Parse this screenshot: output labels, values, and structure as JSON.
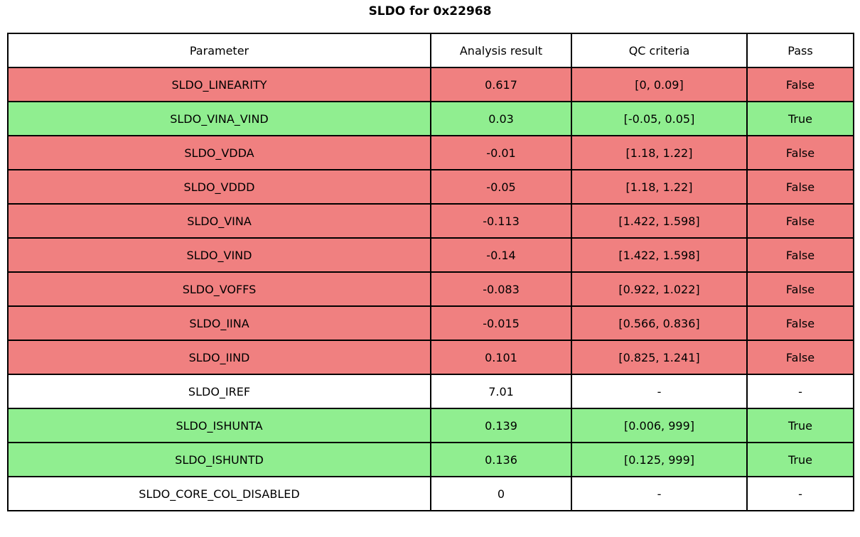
{
  "title": "SLDO for 0x22968",
  "colors": {
    "fail_row": "#f08080",
    "pass_row": "#90ee90",
    "neutral_row": "#ffffff",
    "border": "#000000",
    "text": "#000000"
  },
  "chart_data": {
    "type": "table",
    "title": "SLDO for 0x22968",
    "columns": [
      "Parameter",
      "Analysis result",
      "QC criteria",
      "Pass"
    ],
    "rows": [
      {
        "parameter": "SLDO_LINEARITY",
        "result": "0.617",
        "criteria": "[0, 0.09]",
        "pass": "False",
        "status": "fail"
      },
      {
        "parameter": "SLDO_VINA_VIND",
        "result": "0.03",
        "criteria": "[-0.05, 0.05]",
        "pass": "True",
        "status": "pass"
      },
      {
        "parameter": "SLDO_VDDA",
        "result": "-0.01",
        "criteria": "[1.18, 1.22]",
        "pass": "False",
        "status": "fail"
      },
      {
        "parameter": "SLDO_VDDD",
        "result": "-0.05",
        "criteria": "[1.18, 1.22]",
        "pass": "False",
        "status": "fail"
      },
      {
        "parameter": "SLDO_VINA",
        "result": "-0.113",
        "criteria": "[1.422, 1.598]",
        "pass": "False",
        "status": "fail"
      },
      {
        "parameter": "SLDO_VIND",
        "result": "-0.14",
        "criteria": "[1.422, 1.598]",
        "pass": "False",
        "status": "fail"
      },
      {
        "parameter": "SLDO_VOFFS",
        "result": "-0.083",
        "criteria": "[0.922, 1.022]",
        "pass": "False",
        "status": "fail"
      },
      {
        "parameter": "SLDO_IINA",
        "result": "-0.015",
        "criteria": "[0.566, 0.836]",
        "pass": "False",
        "status": "fail"
      },
      {
        "parameter": "SLDO_IIND",
        "result": "0.101",
        "criteria": "[0.825, 1.241]",
        "pass": "False",
        "status": "fail"
      },
      {
        "parameter": "SLDO_IREF",
        "result": "7.01",
        "criteria": "-",
        "pass": "-",
        "status": "neutral"
      },
      {
        "parameter": "SLDO_ISHUNTA",
        "result": "0.139",
        "criteria": "[0.006, 999]",
        "pass": "True",
        "status": "pass"
      },
      {
        "parameter": "SLDO_ISHUNTD",
        "result": "0.136",
        "criteria": "[0.125, 999]",
        "pass": "True",
        "status": "pass"
      },
      {
        "parameter": "SLDO_CORE_COL_DISABLED",
        "result": "0",
        "criteria": "-",
        "pass": "-",
        "status": "neutral"
      }
    ]
  }
}
